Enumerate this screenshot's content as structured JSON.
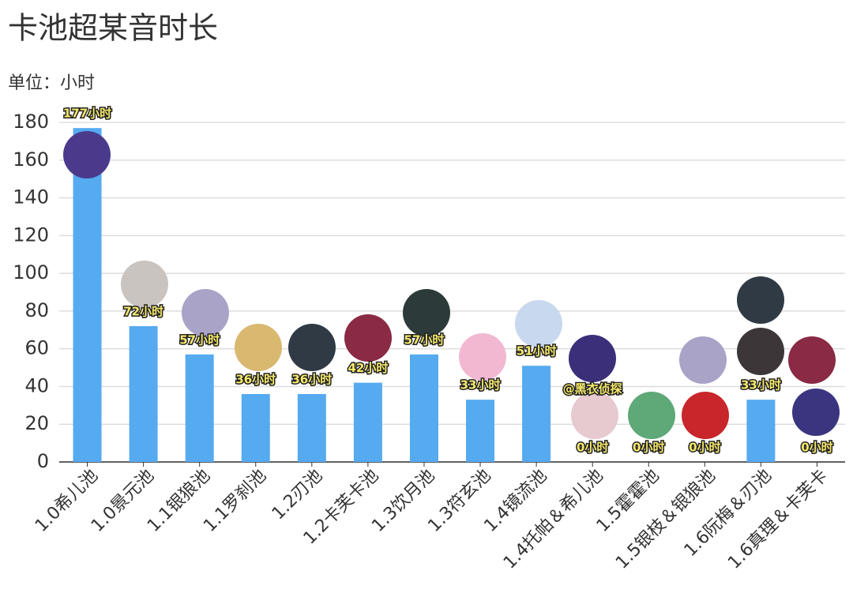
{
  "chart_data": {
    "type": "bar",
    "title": "卡池超某音时长",
    "subtitle": "单位：小时",
    "categories": [
      "1.0希儿池",
      "1.0景元池",
      "1.1银狼池",
      "1.1罗刹池",
      "1.2刃池",
      "1.2卡芙卡池",
      "1.3饮月池",
      "1.3符玄池",
      "1.4镜流池",
      "1.4托帕＆希儿池",
      "1.5霍霍池",
      "1.5银枝＆银狼池",
      "1.6阮梅＆刃池",
      "1.6真理＆卡芙卡"
    ],
    "values": [
      177,
      72,
      57,
      36,
      36,
      42,
      57,
      33,
      51,
      0,
      0,
      0,
      33,
      0
    ],
    "value_labels": [
      "177小时",
      "72小时",
      "57小时",
      "36小时",
      "36小时",
      "42小时",
      "57小时",
      "33小时",
      "51小时",
      "0小时",
      "0小时",
      "0小时",
      "33小时",
      "0小时"
    ],
    "annotation": "@黑衣侦探",
    "color": "#55aaf0",
    "ylim": [
      0,
      180
    ],
    "yticks": [
      0,
      20,
      40,
      60,
      80,
      100,
      120,
      140,
      160,
      180
    ],
    "grid": true
  }
}
